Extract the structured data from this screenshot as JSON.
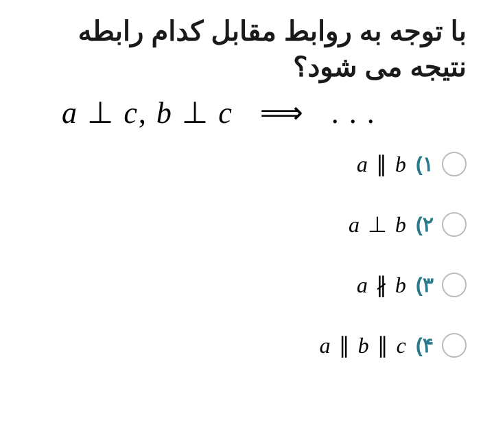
{
  "question": {
    "text": "با توجه به روابط مقابل کدام رابطه نتیجه می شود؟",
    "premise_a": "a",
    "premise_perp1": "⊥",
    "premise_c1": "c",
    "premise_comma": ",",
    "premise_b": "b",
    "premise_perp2": "⊥",
    "premise_c2": "c",
    "premise_arrow": "⟹",
    "premise_dots": ". . ."
  },
  "options": [
    {
      "number": "۱)",
      "var1": "a",
      "symbol": "∥",
      "var2": "b",
      "var3": ""
    },
    {
      "number": "۲)",
      "var1": "a",
      "symbol": "⊥",
      "var2": "b",
      "var3": ""
    },
    {
      "number": "۳)",
      "var1": "a",
      "symbol": "∦",
      "var2": "b",
      "var3": ""
    },
    {
      "number": "۴)",
      "var1": "a",
      "symbol": "∥",
      "var2": "b",
      "symbol2": "∥",
      "var3": "c"
    }
  ],
  "colors": {
    "text": "#1a1a1a",
    "option_number": "#2a7a8c",
    "radio_border": "#bbbbbb",
    "background": "#ffffff"
  }
}
